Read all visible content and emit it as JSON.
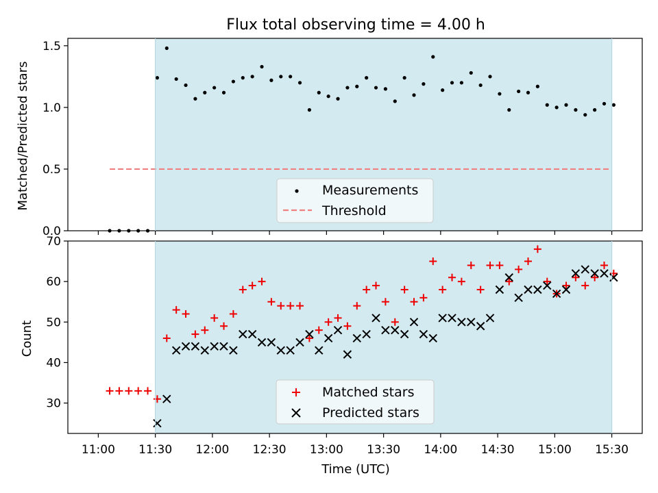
{
  "chart_data": [
    {
      "type": "scatter",
      "title": "Flux total observing time = 4.00 h",
      "ylabel": "Matched/Predicted stars",
      "xlabel": "",
      "ylim": [
        0,
        1.56
      ],
      "yticks": [
        0.0,
        0.5,
        1.0,
        1.5
      ],
      "ytick_labels": [
        "0.0",
        "0.5",
        "1.0",
        "1.5"
      ],
      "shaded_span": [
        "11:30",
        "15:30"
      ],
      "shade_color": "#d3eaf1",
      "legend": {
        "placement": "lower-center",
        "entries": [
          "Measurements",
          "Threshold"
        ]
      },
      "threshold": {
        "name": "Threshold",
        "value": 0.5,
        "x_range": [
          "11:06",
          "15:30"
        ],
        "color": "#f08080"
      },
      "series": [
        {
          "name": "Measurements",
          "color": "#000000",
          "x": [
            "11:06",
            "11:11",
            "11:16",
            "11:21",
            "11:26",
            "11:31",
            "11:36",
            "11:41",
            "11:46",
            "11:51",
            "11:56",
            "12:01",
            "12:06",
            "12:11",
            "12:16",
            "12:21",
            "12:26",
            "12:31",
            "12:36",
            "12:41",
            "12:46",
            "12:51",
            "12:56",
            "13:01",
            "13:06",
            "13:11",
            "13:16",
            "13:21",
            "13:26",
            "13:31",
            "13:36",
            "13:41",
            "13:46",
            "13:51",
            "13:56",
            "14:01",
            "14:06",
            "14:11",
            "14:16",
            "14:21",
            "14:26",
            "14:31",
            "14:36",
            "14:41",
            "14:46",
            "14:51",
            "14:56",
            "15:01",
            "15:06",
            "15:11",
            "15:16",
            "15:21",
            "15:26",
            "15:31"
          ],
          "values": [
            0.0,
            0.0,
            0.0,
            0.0,
            0.0,
            1.24,
            1.48,
            1.23,
            1.18,
            1.07,
            1.12,
            1.16,
            1.12,
            1.21,
            1.24,
            1.25,
            1.33,
            1.22,
            1.25,
            1.25,
            1.2,
            0.98,
            1.12,
            1.09,
            1.07,
            1.16,
            1.17,
            1.24,
            1.16,
            1.15,
            1.05,
            1.24,
            1.1,
            1.19,
            1.41,
            1.14,
            1.2,
            1.2,
            1.28,
            1.18,
            1.25,
            1.11,
            0.98,
            1.13,
            1.12,
            1.17,
            1.02,
            1.0,
            1.02,
            0.98,
            0.94,
            0.98,
            1.03,
            1.02
          ]
        }
      ]
    },
    {
      "type": "scatter",
      "title": "",
      "ylabel": "Count",
      "xlabel": "Time (UTC)",
      "ylim": [
        22.5,
        70
      ],
      "yticks": [
        30,
        40,
        50,
        60,
        70
      ],
      "ytick_labels": [
        "30",
        "40",
        "50",
        "60",
        "70"
      ],
      "xticks": [
        "11:00",
        "11:30",
        "12:00",
        "12:30",
        "13:00",
        "13:30",
        "14:00",
        "14:30",
        "15:00",
        "15:30"
      ],
      "shaded_span": [
        "11:30",
        "15:30"
      ],
      "shade_color": "#d3eaf1",
      "legend": {
        "placement": "lower-center",
        "entries": [
          "Matched stars",
          "Predicted stars"
        ]
      },
      "series": [
        {
          "name": "Matched stars",
          "marker": "+",
          "color": "#ee0000",
          "x": [
            "11:06",
            "11:11",
            "11:16",
            "11:21",
            "11:26",
            "11:31",
            "11:36",
            "11:41",
            "11:46",
            "11:51",
            "11:56",
            "12:01",
            "12:06",
            "12:11",
            "12:16",
            "12:21",
            "12:26",
            "12:31",
            "12:36",
            "12:41",
            "12:46",
            "12:51",
            "12:56",
            "13:01",
            "13:06",
            "13:11",
            "13:16",
            "13:21",
            "13:26",
            "13:31",
            "13:36",
            "13:41",
            "13:46",
            "13:51",
            "13:56",
            "14:01",
            "14:06",
            "14:11",
            "14:16",
            "14:21",
            "14:26",
            "14:31",
            "14:36",
            "14:41",
            "14:46",
            "14:51",
            "14:56",
            "15:01",
            "15:06",
            "15:11",
            "15:16",
            "15:21",
            "15:26",
            "15:31"
          ],
          "values": [
            33,
            33,
            33,
            33,
            33,
            31,
            46,
            53,
            52,
            47,
            48,
            51,
            49,
            52,
            58,
            59,
            60,
            55,
            54,
            54,
            54,
            46,
            48,
            50,
            51,
            49,
            54,
            58,
            59,
            55,
            50,
            58,
            55,
            56,
            65,
            58,
            61,
            60,
            64,
            58,
            64,
            64,
            60,
            63,
            65,
            68,
            60,
            57,
            59,
            61,
            59,
            61,
            64,
            62
          ]
        },
        {
          "name": "Predicted stars",
          "marker": "x",
          "color": "#000000",
          "x": [
            "11:31",
            "11:36",
            "11:41",
            "11:46",
            "11:51",
            "11:56",
            "12:01",
            "12:06",
            "12:11",
            "12:16",
            "12:21",
            "12:26",
            "12:31",
            "12:36",
            "12:41",
            "12:46",
            "12:51",
            "12:56",
            "13:01",
            "13:06",
            "13:11",
            "13:16",
            "13:21",
            "13:26",
            "13:31",
            "13:36",
            "13:41",
            "13:46",
            "13:51",
            "13:56",
            "14:01",
            "14:06",
            "14:11",
            "14:16",
            "14:21",
            "14:26",
            "14:31",
            "14:36",
            "14:41",
            "14:46",
            "14:51",
            "14:56",
            "15:01",
            "15:06",
            "15:11",
            "15:16",
            "15:21",
            "15:26",
            "15:31"
          ],
          "values": [
            25,
            31,
            43,
            44,
            44,
            43,
            44,
            44,
            43,
            47,
            47,
            45,
            45,
            43,
            43,
            45,
            47,
            43,
            46,
            48,
            42,
            46,
            47,
            51,
            48,
            48,
            47,
            50,
            47,
            46,
            51,
            51,
            50,
            50,
            49,
            51,
            58,
            61,
            56,
            58,
            58,
            59,
            57,
            58,
            62,
            63,
            62,
            62,
            61
          ]
        }
      ]
    }
  ]
}
